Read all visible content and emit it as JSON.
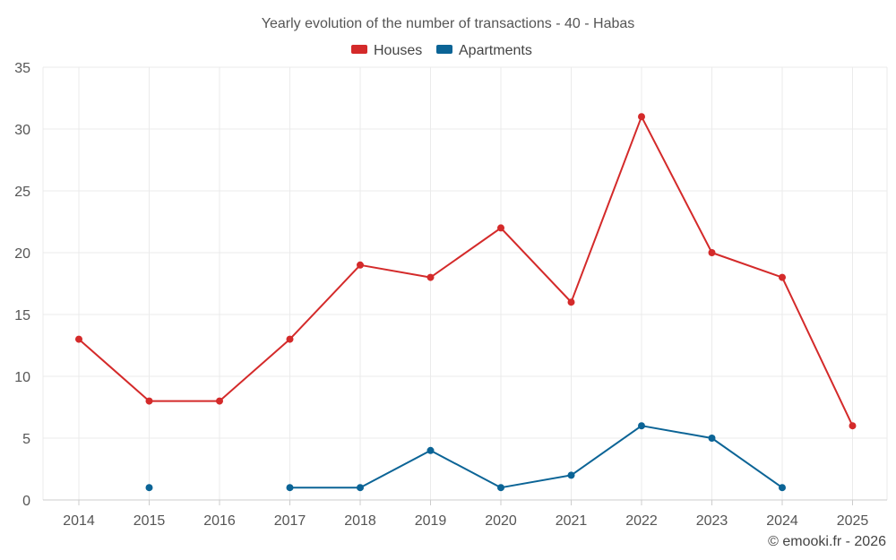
{
  "chart_data": {
    "type": "line",
    "title": "Yearly evolution of the number of transactions - 40 - Habas",
    "categories": [
      "2014",
      "2015",
      "2016",
      "2017",
      "2018",
      "2019",
      "2020",
      "2021",
      "2022",
      "2023",
      "2024",
      "2025"
    ],
    "series": [
      {
        "name": "Houses",
        "color": "#d42a2a",
        "values": [
          13,
          8,
          8,
          13,
          19,
          18,
          22,
          16,
          31,
          20,
          18,
          6
        ]
      },
      {
        "name": "Apartments",
        "color": "#0b6496",
        "values": [
          null,
          1,
          null,
          1,
          1,
          4,
          1,
          2,
          6,
          5,
          1,
          null
        ]
      }
    ],
    "yticks": [
      0,
      5,
      10,
      15,
      20,
      25,
      30,
      35
    ],
    "ylim": [
      0,
      35
    ],
    "xlabel": "",
    "ylabel": "",
    "legend_position": "top-center",
    "grid": true
  },
  "credit": "© emooki.fr - 2026"
}
